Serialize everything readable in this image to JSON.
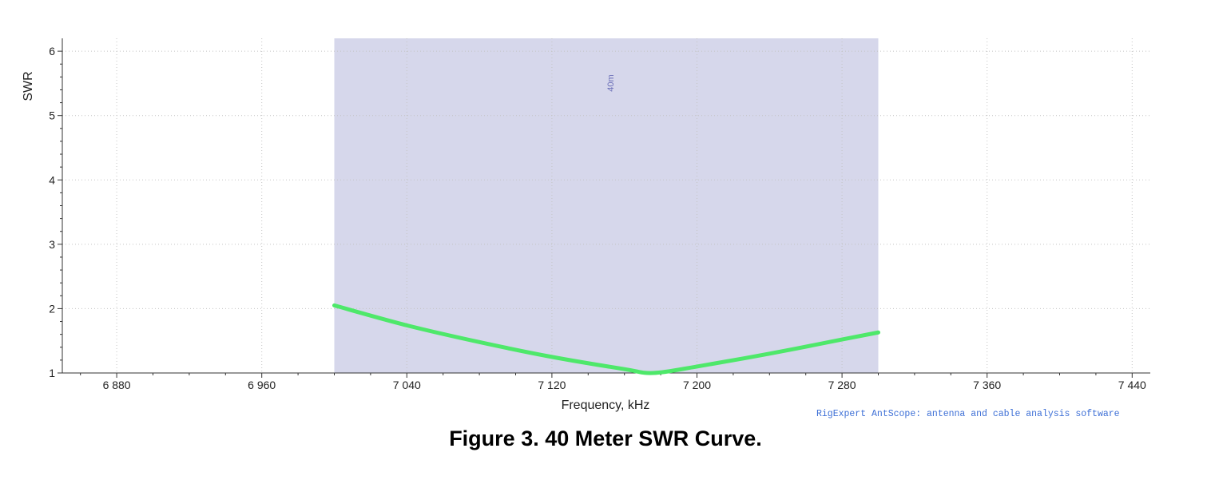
{
  "caption": "Figure 3.  40 Meter SWR Curve.",
  "credit": "RigExpert AntScope: antenna and cable analysis software",
  "chart_data": {
    "type": "line",
    "xlabel": "Frequency, kHz",
    "ylabel": "SWR",
    "xlim": [
      6850,
      7450
    ],
    "ylim": [
      1,
      6.2
    ],
    "x_ticks": [
      6880,
      6960,
      7040,
      7120,
      7200,
      7280,
      7360,
      7440
    ],
    "x_tick_labels": [
      "6 880",
      "6 960",
      "7 040",
      "7 120",
      "7 200",
      "7 280",
      "7 360",
      "7 440"
    ],
    "y_ticks": [
      1,
      2,
      3,
      4,
      5,
      6
    ],
    "y_tick_labels": [
      "1",
      "2",
      "3",
      "4",
      "5",
      "6"
    ],
    "grid": true,
    "band": {
      "label": "40m",
      "start": 7000,
      "end": 7300,
      "color": "#d6d7eb"
    },
    "series": [
      {
        "color": "#4ee86a",
        "x": [
          7000,
          7040,
          7080,
          7120,
          7160,
          7176,
          7200,
          7240,
          7280,
          7300
        ],
        "y": [
          2.05,
          1.74,
          1.48,
          1.25,
          1.06,
          1.0,
          1.1,
          1.3,
          1.52,
          1.63
        ]
      }
    ]
  }
}
